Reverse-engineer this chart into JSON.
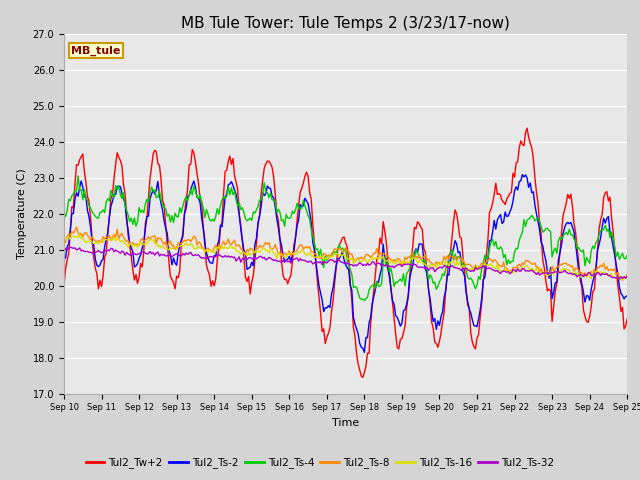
{
  "title": "MB Tule Tower: Tule Temps 2 (3/23/17-now)",
  "xlabel": "Time",
  "ylabel": "Temperature (C)",
  "ylim": [
    17.0,
    27.0
  ],
  "yticks": [
    17.0,
    18.0,
    19.0,
    20.0,
    21.0,
    22.0,
    23.0,
    24.0,
    25.0,
    26.0,
    27.0
  ],
  "x_labels": [
    "Sep 10",
    "Sep 11",
    "Sep 12",
    "Sep 13",
    "Sep 14",
    "Sep 15",
    "Sep 16",
    "Sep 17",
    "Sep 18",
    "Sep 19",
    "Sep 20",
    "Sep 21",
    "Sep 22",
    "Sep 23",
    "Sep 24",
    "Sep 25"
  ],
  "series_colors": {
    "Tul2_Tw+2": "#ff0000",
    "Tul2_Ts-2": "#0000ff",
    "Tul2_Ts-4": "#00cc00",
    "Tul2_Ts-8": "#ff8800",
    "Tul2_Ts-16": "#dddd00",
    "Tul2_Ts-32": "#aa00cc"
  },
  "legend_labels": [
    "Tul2_Tw+2",
    "Tul2_Ts-2",
    "Tul2_Ts-4",
    "Tul2_Ts-8",
    "Tul2_Ts-16",
    "Tul2_Ts-32"
  ],
  "tag_label": "MB_tule",
  "tag_color": "#cc9900",
  "tag_bg": "#ffffcc",
  "tag_text_color": "#880000",
  "fig_bg_color": "#d4d4d4",
  "plot_bg_color": "#e8e8e8",
  "grid_color": "#ffffff",
  "title_fontsize": 11,
  "axis_fontsize": 8,
  "tick_fontsize": 7,
  "n_points": 361,
  "lw": 1.0
}
